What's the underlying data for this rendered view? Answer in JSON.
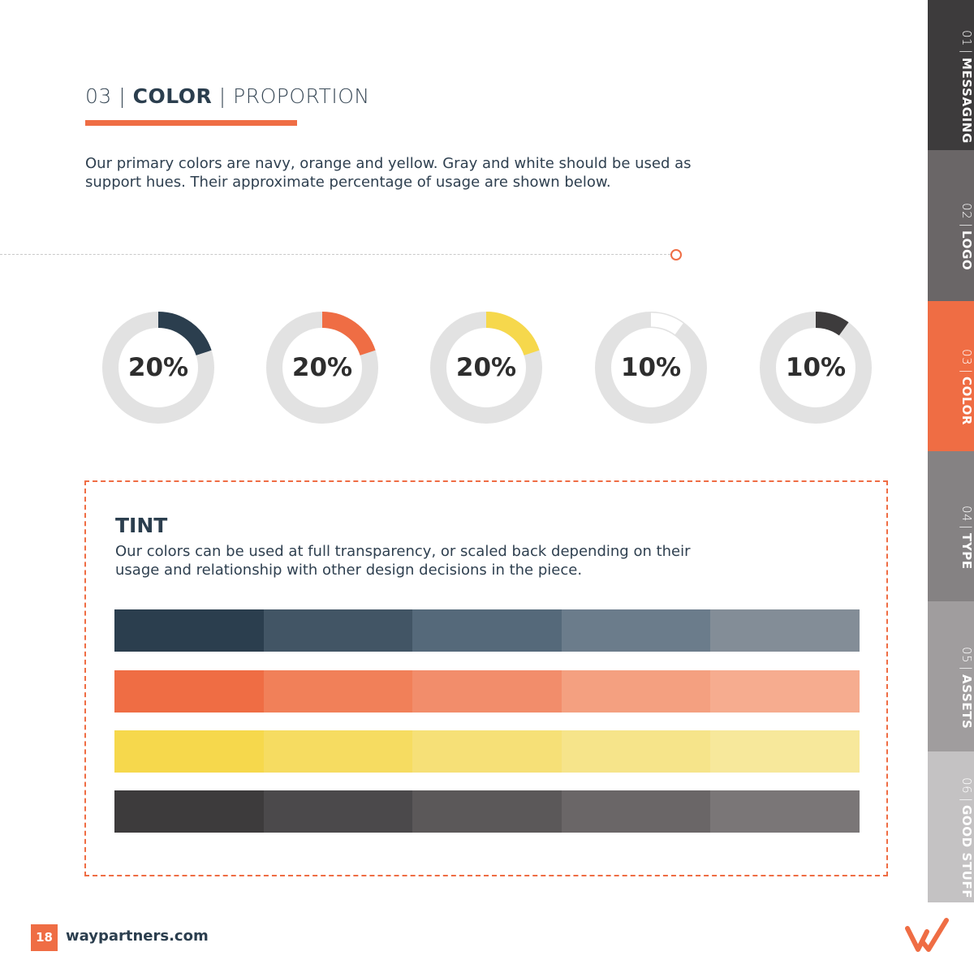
{
  "header": {
    "section_number": "03",
    "divider": "|",
    "section_name": "COLOR",
    "subsection": "PROPORTION"
  },
  "intro_text": "Our primary colors are navy, orange and yellow. Gray and white should be used as support hues. Their approximate percentage of usage are shown below.",
  "proportions": [
    {
      "label": "20%",
      "value": 20,
      "color": "#2b3e4e"
    },
    {
      "label": "20%",
      "value": 20,
      "color": "#ef6d44"
    },
    {
      "label": "20%",
      "value": 20,
      "color": "#f6d84c"
    },
    {
      "label": "10%",
      "value": 10,
      "color": "#ffffff"
    },
    {
      "label": "10%",
      "value": 10,
      "color": "#3d3b3c"
    }
  ],
  "ring_color": "#e2e2e2",
  "tint": {
    "title": "TINT",
    "text": "Our colors can be used at full transparency, or scaled back depending on their usage and relationship with other design decisions in the piece.",
    "rows": [
      [
        "#2b3e4e",
        "#425565",
        "#55697a",
        "#6b7c8b",
        "#838d97"
      ],
      [
        "#ef6d44",
        "#f18059",
        "#f28d6b",
        "#f4a080",
        "#f6ac8f"
      ],
      [
        "#f6d84c",
        "#f6dc61",
        "#f6e077",
        "#f6e48a",
        "#f7e89b"
      ],
      [
        "#3d3b3c",
        "#4b494b",
        "#5b5859",
        "#6a6667",
        "#7a7677"
      ]
    ]
  },
  "nav": [
    {
      "num": "01",
      "name": "MESSAGING",
      "color": "#3d3b3c",
      "active": false
    },
    {
      "num": "02",
      "name": "LOGO",
      "color": "#6a6667",
      "active": false
    },
    {
      "num": "03",
      "name": "COLOR",
      "color": "#ef6d44",
      "active": true
    },
    {
      "num": "04",
      "name": "TYPE",
      "color": "#858283",
      "active": false
    },
    {
      "num": "05",
      "name": "ASSETS",
      "color": "#a09d9e",
      "active": false
    },
    {
      "num": "06",
      "name": "GOOD STUFF",
      "color": "#c4c2c3",
      "active": false
    }
  ],
  "footer": {
    "page_number": "18",
    "website": "waypartners.com"
  },
  "logo_icon": "way-partners-logo-icon"
}
